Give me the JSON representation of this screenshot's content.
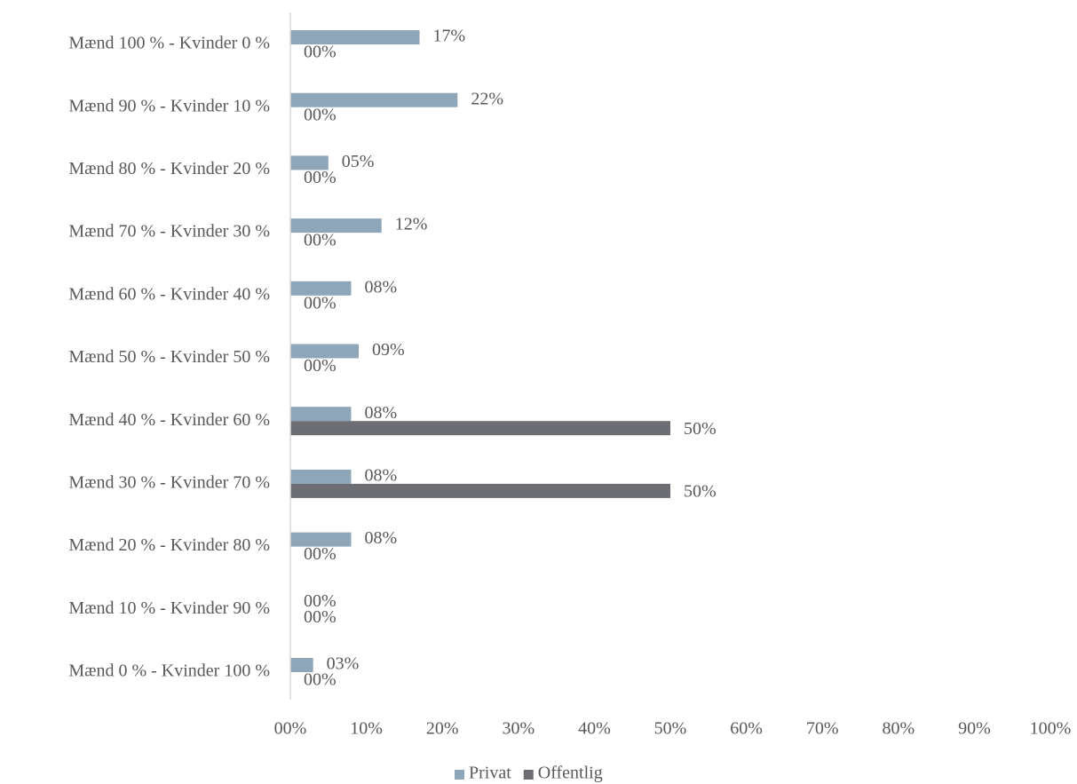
{
  "chart_data": {
    "type": "hbar",
    "categories": [
      "Mænd 100 % - Kvinder 0 %",
      "Mænd 90 % - Kvinder 10 %",
      "Mænd 80 % - Kvinder 20 %",
      "Mænd 70 % - Kvinder 30 %",
      "Mænd 60 % - Kvinder 40 %",
      "Mænd 50 % - Kvinder 50 %",
      "Mænd 40 % - Kvinder 60 %",
      "Mænd 30 % - Kvinder 70 %",
      "Mænd 20 % - Kvinder 80 %",
      "Mænd 10 % - Kvinder 90 %",
      "Mænd 0 % - Kvinder 100 %"
    ],
    "series": [
      {
        "name": "Privat",
        "color": "#8fa5b8",
        "values": [
          17,
          22,
          5,
          12,
          8,
          9,
          8,
          8,
          8,
          0,
          3
        ],
        "value_labels": [
          "17%",
          "22%",
          "05%",
          "12%",
          "08%",
          "09%",
          "08%",
          "08%",
          "08%",
          "00%",
          "03%"
        ]
      },
      {
        "name": "Offentlig",
        "color": "#6d6e73",
        "values": [
          0,
          0,
          0,
          0,
          0,
          0,
          50,
          50,
          0,
          0,
          0
        ],
        "value_labels": [
          "00%",
          "00%",
          "00%",
          "00%",
          "00%",
          "00%",
          "50%",
          "50%",
          "00%",
          "00%",
          "00%"
        ]
      }
    ],
    "xlim": [
      0,
      100
    ],
    "xticks": [
      {
        "value": 0,
        "label": "00%"
      },
      {
        "value": 10,
        "label": "10%"
      },
      {
        "value": 20,
        "label": "20%"
      },
      {
        "value": 30,
        "label": "30%"
      },
      {
        "value": 40,
        "label": "40%"
      },
      {
        "value": 50,
        "label": "50%"
      },
      {
        "value": 60,
        "label": "60%"
      },
      {
        "value": 70,
        "label": "70%"
      },
      {
        "value": 80,
        "label": "80%"
      },
      {
        "value": 90,
        "label": "90%"
      },
      {
        "value": 100,
        "label": "100%"
      }
    ],
    "grid": false,
    "legend": "bottom"
  }
}
